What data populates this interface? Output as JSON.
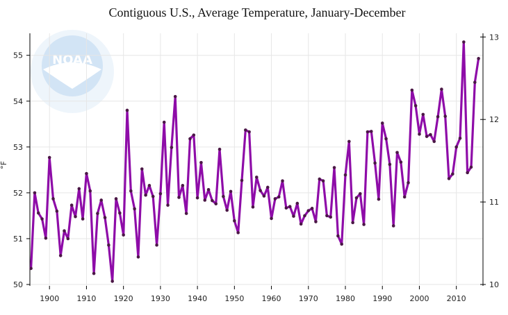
{
  "chart_data": {
    "type": "line",
    "title": "Contiguous U.S., Average Temperature, January-December",
    "ylabel": "°F",
    "y2label": "",
    "xlim": [
      1894.7,
      2017.2
    ],
    "ylim": [
      49.97,
      55.48
    ],
    "x_ticks": [
      "1900",
      "1910",
      "1920",
      "1930",
      "1940",
      "1950",
      "1960",
      "1970",
      "1980",
      "1990",
      "2000",
      "2010"
    ],
    "y_ticks": [
      "50",
      "51",
      "52",
      "53",
      "54",
      "55"
    ],
    "y2_ticks": [
      "10",
      "11",
      "12",
      "13"
    ],
    "y2_unit_note": "",
    "grid": true,
    "legend": "none",
    "line_color": "#8e0ca8",
    "marker_color": "#4b1746",
    "watermark": "NOAA  U.S. DEPARTMENT OF COMMERCE  NATIONAL OCEANIC AND ATMOSPHERIC ADMINISTRATION",
    "x_start": 1895,
    "values": [
      50.35,
      52.0,
      51.56,
      51.43,
      51.01,
      52.77,
      51.87,
      51.6,
      50.63,
      51.17,
      51.0,
      51.73,
      51.48,
      52.09,
      51.43,
      52.42,
      52.04,
      50.24,
      51.55,
      51.84,
      51.46,
      50.86,
      50.07,
      51.87,
      51.56,
      51.08,
      53.8,
      52.04,
      51.65,
      50.6,
      52.52,
      51.95,
      52.16,
      51.92,
      50.86,
      51.98,
      53.54,
      51.73,
      52.99,
      54.1,
      51.9,
      52.16,
      51.55,
      53.18,
      53.26,
      51.89,
      52.66,
      51.84,
      52.07,
      51.83,
      51.76,
      52.95,
      51.92,
      51.62,
      52.03,
      51.39,
      51.13,
      52.27,
      53.37,
      53.33,
      51.69,
      52.34,
      52.05,
      51.93,
      52.12,
      51.44,
      51.87,
      51.91,
      52.26,
      51.67,
      51.7,
      51.49,
      51.77,
      51.32,
      51.5,
      51.61,
      51.66,
      51.37,
      52.3,
      52.26,
      51.5,
      51.47,
      52.55,
      51.06,
      50.88,
      52.39,
      53.12,
      51.35,
      51.89,
      51.98,
      51.31,
      53.33,
      53.34,
      52.65,
      51.86,
      53.52,
      53.18,
      52.62,
      51.28,
      52.88,
      52.67,
      51.91,
      52.22,
      54.24,
      53.9,
      53.28,
      53.71,
      53.23,
      53.27,
      53.12,
      53.66,
      54.26,
      53.67,
      52.31,
      52.41,
      53.0,
      53.19,
      55.29,
      52.44,
      52.56,
      54.41,
      54.93
    ]
  }
}
